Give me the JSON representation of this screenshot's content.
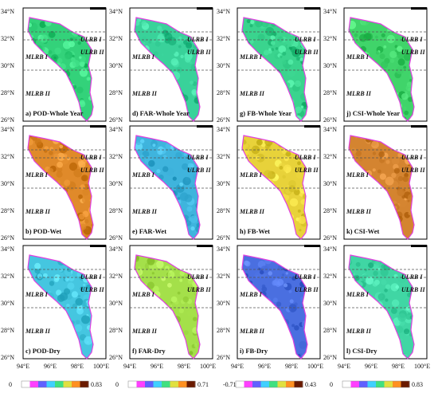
{
  "figure": {
    "lat_ticks": [
      "34°N",
      "32°N",
      "30°N",
      "28°N",
      "26°N"
    ],
    "lon_ticks": [
      "94°E",
      "96°E",
      "98°E",
      "100°E"
    ],
    "region_labels": {
      "ulrb": "ULRB I",
      "ulrb2": "ULRB II",
      "mlrb": "MLRB I",
      "mlrb2": "MLRB II"
    },
    "panels": [
      {
        "id": "a",
        "label": "a) POD-Whole Year",
        "metric": "POD",
        "period": "Whole Year",
        "base": "#33d27a"
      },
      {
        "id": "d",
        "label": "d) FAR-Whole Year",
        "metric": "FAR",
        "period": "Whole Year",
        "base": "#39d29a"
      },
      {
        "id": "g",
        "label": "g) FB-Whole Year",
        "metric": "FB",
        "period": "Whole Year",
        "base": "#3ad48e"
      },
      {
        "id": "j",
        "label": "j) CSI-Whole Year",
        "metric": "CSI",
        "period": "Whole Year",
        "base": "#40d46a"
      },
      {
        "id": "b",
        "label": "b) POD-Wet",
        "metric": "POD",
        "period": "Wet",
        "base": "#e08a2a"
      },
      {
        "id": "e",
        "label": "e) FAR-Wet",
        "metric": "FAR",
        "period": "Wet",
        "base": "#3fb4dd"
      },
      {
        "id": "h",
        "label": "h) FB-Wet",
        "metric": "FB",
        "period": "Wet",
        "base": "#e8d23a"
      },
      {
        "id": "k",
        "label": "k) CSI-Wet",
        "metric": "CSI",
        "period": "Wet",
        "base": "#d48430"
      },
      {
        "id": "c",
        "label": "c) POD-Dry",
        "metric": "POD",
        "period": "Dry",
        "base": "#45c6e0"
      },
      {
        "id": "f",
        "label": "f) FAR-Dry",
        "metric": "FAR",
        "period": "Dry",
        "base": "#a4e04a"
      },
      {
        "id": "i",
        "label": "i) FB-Dry",
        "metric": "FB",
        "period": "Dry",
        "base": "#4a6fe0"
      },
      {
        "id": "l",
        "label": "l) CSI-Dry",
        "metric": "CSI",
        "period": "Dry",
        "base": "#40d6a4"
      }
    ],
    "colorbars": [
      {
        "metric": "POD",
        "min": "0",
        "max": "0.83",
        "colors": [
          "#ffffff",
          "#ff40ff",
          "#6060ff",
          "#40d0ff",
          "#40e080",
          "#e0e040",
          "#ff9020",
          "#6a1a00"
        ]
      },
      {
        "metric": "FAR",
        "min": "0",
        "max": "0.71",
        "colors": [
          "#ffffff",
          "#ff40ff",
          "#6060ff",
          "#40d0ff",
          "#40e080",
          "#e0e040",
          "#ff9020",
          "#6a1a00"
        ]
      },
      {
        "metric": "FB",
        "min": "-0.71",
        "max": "0.43",
        "colors": [
          "#ffffff",
          "#ff40ff",
          "#6060ff",
          "#40d0ff",
          "#40e080",
          "#e0e040",
          "#ff9020",
          "#6a1a00"
        ]
      },
      {
        "metric": "CSI",
        "min": "0",
        "max": "0.83",
        "colors": [
          "#ffffff",
          "#ff40ff",
          "#6060ff",
          "#40d0ff",
          "#40e080",
          "#e0e040",
          "#ff9020",
          "#6a1a00"
        ]
      }
    ],
    "colors": {
      "basin_outline": "#e040e0",
      "divider": "#555555",
      "frame": "#000000"
    }
  }
}
